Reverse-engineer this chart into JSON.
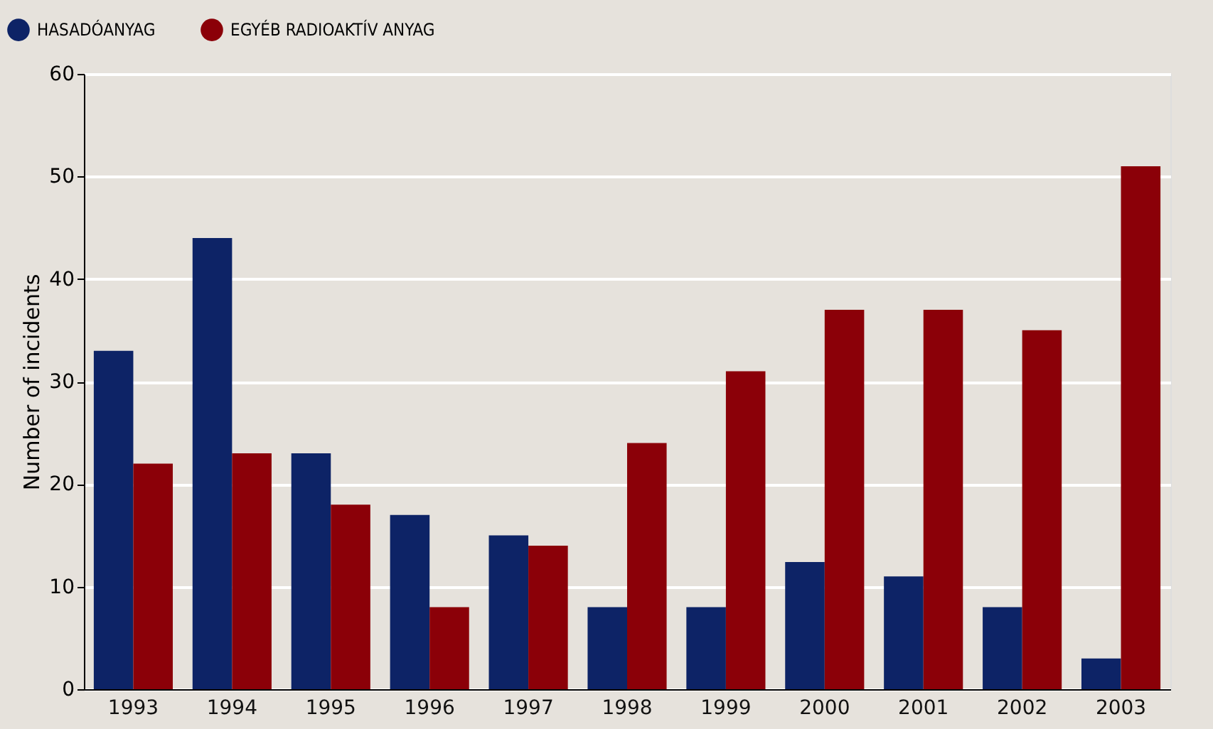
{
  "chart_data": {
    "type": "bar",
    "ylabel": "Number of incidents",
    "categories": [
      "1993",
      "1994",
      "1995",
      "1996",
      "1997",
      "1998",
      "1999",
      "2000",
      "2001",
      "2002",
      "2003"
    ],
    "series": [
      {
        "name": "HASADÓANYAG",
        "color": "#0d2366",
        "values": [
          33,
          44,
          23,
          17,
          15,
          8,
          8,
          12.4,
          11,
          8,
          3
        ]
      },
      {
        "name": "EGYÉB RADIOAKTÍV ANYAG",
        "color": "#8b0008",
        "values": [
          22,
          23,
          18,
          8,
          14,
          24,
          31,
          37,
          37,
          35,
          51
        ]
      }
    ],
    "ylim": [
      0,
      60
    ],
    "yticks": [
      0,
      10,
      20,
      30,
      40,
      50,
      60
    ],
    "grid": "y",
    "legend": "top left"
  }
}
